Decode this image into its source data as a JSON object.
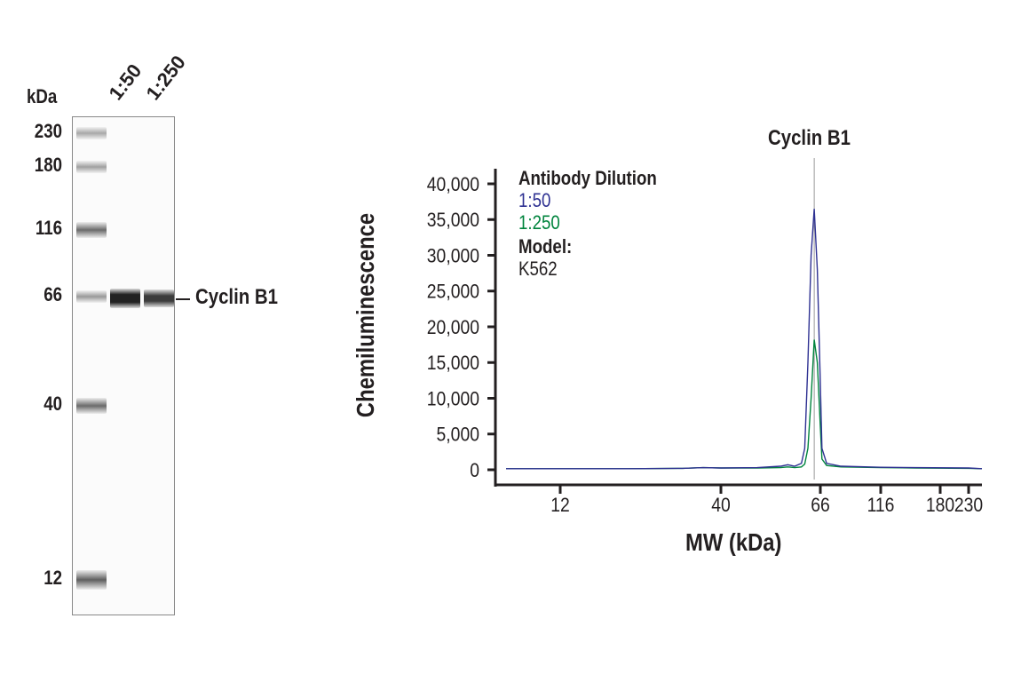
{
  "blot": {
    "unit_label": "kDa",
    "lane_labels": [
      "1:50",
      "1:250"
    ],
    "markers": [
      "230",
      "180",
      "116",
      "66",
      "40",
      "12"
    ],
    "band_label": "Cyclin B1"
  },
  "chart_data": {
    "type": "line",
    "title": "Cyclin B1",
    "xlabel": "MW (kDa)",
    "ylabel": "Chemiluminescence",
    "x_ticks": [
      12,
      40,
      66,
      116,
      180,
      230
    ],
    "x_tick_labels": [
      "12",
      "40",
      "66",
      "116",
      "180",
      "230"
    ],
    "y_ticks": [
      0,
      5000,
      10000,
      15000,
      20000,
      25000,
      30000,
      35000,
      40000
    ],
    "y_tick_labels": [
      "0",
      "5,000",
      "10,000",
      "15,000",
      "20,000",
      "25,000",
      "30,000",
      "35,000",
      "40,000"
    ],
    "ylim": [
      0,
      40000
    ],
    "marker_line_x": 64,
    "legend": {
      "title": "Antibody Dilution",
      "model_label": "Model:",
      "model_value": "K562",
      "placement": "top-left"
    },
    "series": [
      {
        "name": "1:50",
        "color": "#2e3192",
        "x": [
          8,
          20,
          30,
          35,
          40,
          48,
          54,
          56,
          58,
          60,
          61,
          62,
          63,
          64,
          65,
          66,
          67,
          70,
          80,
          116,
          150,
          230,
          260
        ],
        "y": [
          150,
          150,
          200,
          300,
          250,
          300,
          500,
          700,
          500,
          900,
          3000,
          15000,
          30000,
          36500,
          28000,
          12000,
          3000,
          900,
          500,
          350,
          300,
          250,
          150
        ]
      },
      {
        "name": "1:250",
        "color": "#00843d",
        "x": [
          8,
          20,
          30,
          35,
          40,
          48,
          54,
          56,
          58,
          60,
          61,
          62,
          63,
          64,
          65,
          66,
          67,
          70,
          80,
          116,
          150,
          230,
          260
        ],
        "y": [
          150,
          150,
          200,
          300,
          250,
          250,
          300,
          400,
          300,
          400,
          800,
          3000,
          10000,
          18200,
          15000,
          6000,
          1500,
          600,
          400,
          300,
          250,
          200,
          150
        ]
      }
    ]
  }
}
